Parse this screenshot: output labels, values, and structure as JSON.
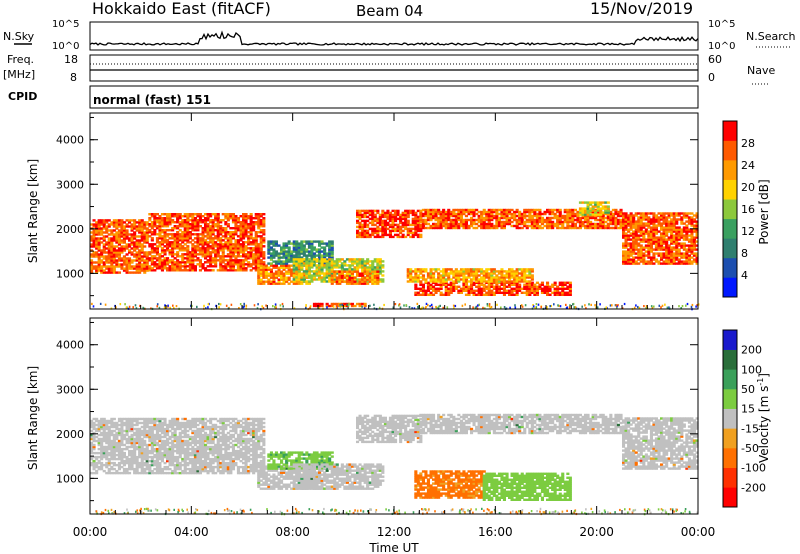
{
  "header": {
    "title": "Hokkaido East (fitACF)",
    "beam": "Beam 04",
    "date": "15/Nov/2019"
  },
  "strips": {
    "nsky_label": "N.Sky",
    "nsky_ticks": [
      "10^5",
      "10^0"
    ],
    "nsearch_label": "N.Search",
    "nsearch_ticks": [
      "10^5",
      "10^0"
    ],
    "freq_label": "Freq.",
    "freq_unit": "[MHz]",
    "freq_ticks": [
      "18",
      "8"
    ],
    "nave_label": "Nave",
    "nave_ticks": [
      "60",
      "0"
    ],
    "cpid_label": "CPID",
    "cpid_text": "normal (fast) 151"
  },
  "colors": {
    "power": [
      "#0018ff",
      "#1c4fb0",
      "#2f7f6f",
      "#3aa060",
      "#8cc83c",
      "#ffd200",
      "#ff9a00",
      "#ff5a00",
      "#ff0000"
    ],
    "velocity": [
      "#1a1acc",
      "#2a6e3a",
      "#3aa05a",
      "#7ccc40",
      "#c0c0c0",
      "#f0a020",
      "#ff7000",
      "#ff3000",
      "#ff0000"
    ],
    "gray": "#c0c0c0"
  },
  "chart_data": [
    {
      "type": "heatmap",
      "name": "power",
      "ylabel": "Slant Range [km]",
      "yticks": [
        "4000",
        "3000",
        "2000",
        "1000"
      ],
      "ylim": [
        200,
        4600
      ],
      "xlim_hours": [
        0,
        24
      ],
      "colorbar_label": "Power [dB]",
      "colorbar_ticks": [
        "28",
        "24",
        "20",
        "16",
        "12",
        "8",
        "4"
      ],
      "regions": [
        {
          "t0": 0.0,
          "t1": 2.3,
          "r0": 1000,
          "r1": 2200,
          "v": 26
        },
        {
          "t0": 2.3,
          "t1": 6.8,
          "r0": 1050,
          "r1": 2350,
          "v": 27
        },
        {
          "t0": 6.6,
          "t1": 8.6,
          "r0": 750,
          "r1": 1200,
          "v": 24
        },
        {
          "t0": 7.0,
          "t1": 9.5,
          "r0": 1200,
          "r1": 1700,
          "v": 10
        },
        {
          "t0": 8.0,
          "t1": 11.5,
          "r0": 800,
          "r1": 1300,
          "v": 17
        },
        {
          "t0": 9.5,
          "t1": 11.3,
          "r0": 750,
          "r1": 1050,
          "v": 25
        },
        {
          "t0": 10.5,
          "t1": 13.0,
          "r0": 1800,
          "r1": 2400,
          "v": 28
        },
        {
          "t0": 12.8,
          "t1": 19.0,
          "r0": 500,
          "r1": 800,
          "v": 27
        },
        {
          "t0": 12.5,
          "t1": 17.5,
          "r0": 800,
          "r1": 1100,
          "v": 22
        },
        {
          "t0": 13.0,
          "t1": 21.0,
          "r0": 2000,
          "r1": 2450,
          "v": 26
        },
        {
          "t0": 19.3,
          "t1": 20.5,
          "r0": 2300,
          "r1": 2600,
          "v": 18
        },
        {
          "t0": 21.0,
          "t1": 24.0,
          "r0": 1200,
          "r1": 2350,
          "v": 26
        },
        {
          "t0": 8.8,
          "t1": 10.8,
          "r0": 250,
          "r1": 310,
          "v": 28
        }
      ]
    },
    {
      "type": "heatmap",
      "name": "velocity",
      "ylabel": "Slant Range [km]",
      "yticks": [
        "4000",
        "3000",
        "2000",
        "1000"
      ],
      "ylim": [
        200,
        4600
      ],
      "xlim_hours": [
        0,
        24
      ],
      "xticks": [
        "00:00",
        "04:00",
        "08:00",
        "12:00",
        "16:00",
        "20:00",
        "00:00"
      ],
      "xlabel": "Time UT",
      "colorbar_label": "Velocity [m s",
      "colorbar_label_exp": "-1",
      "colorbar_ticks": [
        "200",
        "100",
        "50",
        "15",
        "-15",
        "-50",
        "-100",
        "-200"
      ],
      "regions": [
        {
          "t0": 0.0,
          "t1": 6.8,
          "r0": 1100,
          "r1": 2350,
          "v": 0
        },
        {
          "t0": 6.6,
          "t1": 9.0,
          "r0": 750,
          "r1": 1250,
          "v": 0
        },
        {
          "t0": 7.0,
          "t1": 9.5,
          "r0": 1200,
          "r1": 1600,
          "v": 40
        },
        {
          "t0": 8.0,
          "t1": 11.5,
          "r0": 750,
          "r1": 1300,
          "v": 0
        },
        {
          "t0": 10.5,
          "t1": 13.0,
          "r0": 1800,
          "r1": 2400,
          "v": 0
        },
        {
          "t0": 12.8,
          "t1": 15.5,
          "r0": 550,
          "r1": 1150,
          "v": -40
        },
        {
          "t0": 15.5,
          "t1": 19.0,
          "r0": 500,
          "r1": 1100,
          "v": 50
        },
        {
          "t0": 13.0,
          "t1": 21.0,
          "r0": 2000,
          "r1": 2450,
          "v": 0
        },
        {
          "t0": 21.0,
          "t1": 24.0,
          "r0": 1200,
          "r1": 2350,
          "v": 0
        }
      ]
    }
  ]
}
